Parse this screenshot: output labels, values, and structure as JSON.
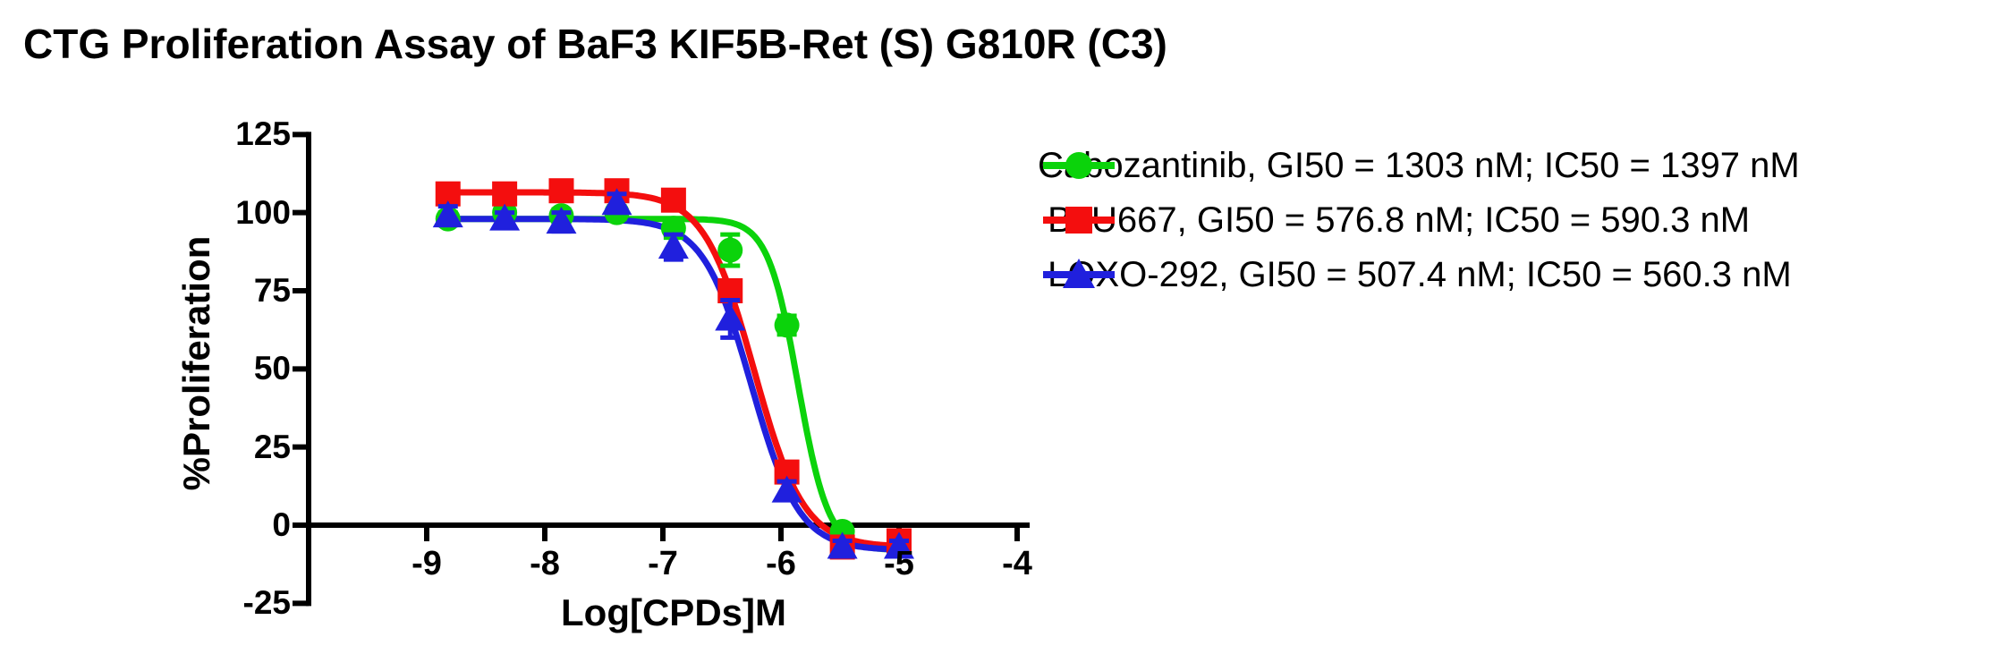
{
  "title": "CTG Proliferation Assay of BaF3 KIF5B-Ret (S) G810R (C3)",
  "chart_data": {
    "type": "line",
    "title": "CTG Proliferation Assay of BaF3 KIF5B-Ret (S) G810R (C3)",
    "xlabel": "Log[CPDs]M",
    "ylabel": "%Proliferation",
    "xlim": [
      -10,
      -3.9
    ],
    "ylim": [
      -25,
      125
    ],
    "xticks": [
      -9,
      -8,
      -7,
      -6,
      -5,
      -4
    ],
    "yticks": [
      125,
      100,
      75,
      50,
      25,
      0,
      -25
    ],
    "grid": false,
    "legend_position": "right",
    "x": [
      -8.82,
      -8.34,
      -7.86,
      -7.39,
      -6.91,
      -6.43,
      -5.95,
      -5.48,
      -5.0
    ],
    "series": [
      {
        "name": "Cabozantinib",
        "legend": "Cabozantinib, GI50 = 1303 nM; IC50 = 1397 nM",
        "gi50_nM": 1303,
        "ic50_nM": 1397,
        "color": "#0bd30b",
        "marker": "circle",
        "values": [
          98,
          100,
          99,
          100,
          95,
          88,
          64,
          -2,
          -5
        ],
        "errors": [
          2,
          2,
          2,
          2,
          3,
          5,
          3,
          2,
          2
        ],
        "fit": {
          "top": 98,
          "bottom": -8,
          "logic50": -5.855,
          "hill": 3.4
        }
      },
      {
        "name": "BLU667",
        "legend": " BLU667, GI50 = 576.8 nM; IC50 = 590.3 nM",
        "gi50_nM": 576.8,
        "ic50_nM": 590.3,
        "color": "#f40e0e",
        "marker": "square",
        "values": [
          106,
          106,
          107,
          107,
          104,
          75,
          17,
          -7,
          -5
        ],
        "errors": [
          2,
          2,
          2,
          2,
          3,
          3,
          3,
          2,
          2
        ],
        "fit": {
          "top": 106.5,
          "bottom": -7,
          "logic50": -6.229,
          "hill": 2.06
        }
      },
      {
        "name": "LOXO-292",
        "legend": " LOXO-292, GI50 = 507.4 nM; IC50 = 560.3 nM",
        "gi50_nM": 507.4,
        "ic50_nM": 560.3,
        "color": "#2020dd",
        "marker": "triangle",
        "values": [
          99,
          98,
          97,
          103,
          89,
          66,
          11,
          -7,
          -7
        ],
        "errors": [
          3,
          2,
          3,
          3,
          4,
          6,
          3,
          2,
          2
        ],
        "fit": {
          "top": 98,
          "bottom": -8,
          "logic50": -6.252,
          "hill": 2.14
        }
      }
    ]
  }
}
